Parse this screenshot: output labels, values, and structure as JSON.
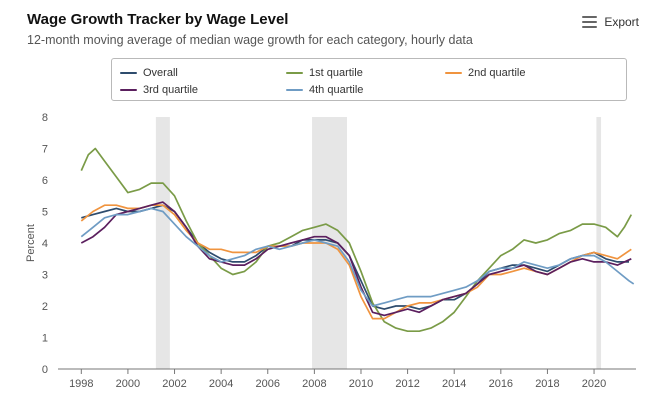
{
  "header": {
    "title": "Wage Growth Tracker by Wage Level",
    "subtitle": "12-month moving average of median wage growth for each category, hourly data",
    "export_label": "Export",
    "export_icon": "hamburger-menu-icon"
  },
  "chart_data": {
    "type": "line",
    "ylabel": "Percent",
    "ylim": [
      0,
      8
    ],
    "yticks": [
      "0",
      "1",
      "2",
      "3",
      "4",
      "5",
      "6",
      "7",
      "8"
    ],
    "xlim": [
      1997.0,
      2021.8
    ],
    "xticks": [
      "1998",
      "2000",
      "2002",
      "2004",
      "2006",
      "2008",
      "2010",
      "2012",
      "2014",
      "2016",
      "2018",
      "2020"
    ],
    "grid": "none",
    "legend_position": "top",
    "recession_shading": [
      {
        "start": 2001.2,
        "end": 2001.8
      },
      {
        "start": 2007.9,
        "end": 2009.4
      },
      {
        "start": 2020.1,
        "end": 2020.3
      }
    ],
    "series": [
      {
        "name": "Overall",
        "color": "#2e4c6d",
        "points": [
          [
            1998,
            4.8
          ],
          [
            1998.5,
            4.9
          ],
          [
            1999,
            5.0
          ],
          [
            1999.5,
            5.1
          ],
          [
            2000,
            5.0
          ],
          [
            2000.5,
            5.0
          ],
          [
            2001,
            5.1
          ],
          [
            2001.5,
            5.2
          ],
          [
            2002,
            5.0
          ],
          [
            2002.5,
            4.5
          ],
          [
            2003,
            4.0
          ],
          [
            2003.5,
            3.7
          ],
          [
            2004,
            3.5
          ],
          [
            2004.5,
            3.4
          ],
          [
            2005,
            3.4
          ],
          [
            2005.5,
            3.6
          ],
          [
            2006,
            3.9
          ],
          [
            2006.5,
            3.9
          ],
          [
            2007,
            3.9
          ],
          [
            2007.5,
            4.1
          ],
          [
            2008,
            4.1
          ],
          [
            2008.5,
            4.1
          ],
          [
            2009,
            4.0
          ],
          [
            2009.5,
            3.6
          ],
          [
            2010,
            2.8
          ],
          [
            2010.5,
            2.0
          ],
          [
            2011,
            1.9
          ],
          [
            2011.5,
            2.0
          ],
          [
            2012,
            2.0
          ],
          [
            2012.5,
            1.9
          ],
          [
            2013,
            2.0
          ],
          [
            2013.5,
            2.2
          ],
          [
            2014,
            2.2
          ],
          [
            2014.5,
            2.4
          ],
          [
            2015,
            2.7
          ],
          [
            2015.5,
            3.1
          ],
          [
            2016,
            3.2
          ],
          [
            2016.5,
            3.3
          ],
          [
            2017,
            3.3
          ],
          [
            2017.5,
            3.2
          ],
          [
            2018,
            3.1
          ],
          [
            2018.5,
            3.3
          ],
          [
            2019,
            3.5
          ],
          [
            2019.5,
            3.6
          ],
          [
            2020,
            3.7
          ],
          [
            2020.5,
            3.5
          ],
          [
            2021,
            3.4
          ],
          [
            2021.5,
            3.4
          ]
        ]
      },
      {
        "name": "1st quartile",
        "color": "#7a9b47",
        "points": [
          [
            1998,
            6.3
          ],
          [
            1998.3,
            6.8
          ],
          [
            1998.6,
            7.0
          ],
          [
            1999,
            6.6
          ],
          [
            1999.5,
            6.1
          ],
          [
            2000,
            5.6
          ],
          [
            2000.5,
            5.7
          ],
          [
            2001,
            5.9
          ],
          [
            2001.5,
            5.9
          ],
          [
            2002,
            5.5
          ],
          [
            2002.5,
            4.7
          ],
          [
            2003,
            4.0
          ],
          [
            2003.5,
            3.6
          ],
          [
            2004,
            3.2
          ],
          [
            2004.5,
            3.0
          ],
          [
            2005,
            3.1
          ],
          [
            2005.5,
            3.4
          ],
          [
            2006,
            3.9
          ],
          [
            2006.5,
            4.0
          ],
          [
            2007,
            4.2
          ],
          [
            2007.5,
            4.4
          ],
          [
            2008,
            4.5
          ],
          [
            2008.5,
            4.6
          ],
          [
            2009,
            4.4
          ],
          [
            2009.5,
            4.0
          ],
          [
            2010,
            3.1
          ],
          [
            2010.5,
            2.1
          ],
          [
            2011,
            1.5
          ],
          [
            2011.5,
            1.3
          ],
          [
            2012,
            1.2
          ],
          [
            2012.5,
            1.2
          ],
          [
            2013,
            1.3
          ],
          [
            2013.5,
            1.5
          ],
          [
            2014,
            1.8
          ],
          [
            2014.5,
            2.3
          ],
          [
            2015,
            2.8
          ],
          [
            2015.5,
            3.2
          ],
          [
            2016,
            3.6
          ],
          [
            2016.5,
            3.8
          ],
          [
            2017,
            4.1
          ],
          [
            2017.5,
            4.0
          ],
          [
            2018,
            4.1
          ],
          [
            2018.5,
            4.3
          ],
          [
            2019,
            4.4
          ],
          [
            2019.5,
            4.6
          ],
          [
            2020,
            4.6
          ],
          [
            2020.5,
            4.5
          ],
          [
            2021,
            4.2
          ],
          [
            2021.3,
            4.5
          ],
          [
            2021.6,
            4.9
          ]
        ]
      },
      {
        "name": "2nd quartile",
        "color": "#f0943f",
        "points": [
          [
            1998,
            4.7
          ],
          [
            1998.5,
            5.0
          ],
          [
            1999,
            5.2
          ],
          [
            1999.5,
            5.2
          ],
          [
            2000,
            5.1
          ],
          [
            2000.5,
            5.1
          ],
          [
            2001,
            5.2
          ],
          [
            2001.5,
            5.2
          ],
          [
            2002,
            4.9
          ],
          [
            2002.5,
            4.4
          ],
          [
            2003,
            4.0
          ],
          [
            2003.5,
            3.8
          ],
          [
            2004,
            3.8
          ],
          [
            2004.5,
            3.7
          ],
          [
            2005,
            3.7
          ],
          [
            2005.5,
            3.7
          ],
          [
            2006,
            3.9
          ],
          [
            2006.5,
            3.9
          ],
          [
            2007,
            3.9
          ],
          [
            2007.5,
            4.0
          ],
          [
            2008,
            4.0
          ],
          [
            2008.5,
            4.0
          ],
          [
            2009,
            3.8
          ],
          [
            2009.5,
            3.3
          ],
          [
            2010,
            2.3
          ],
          [
            2010.5,
            1.6
          ],
          [
            2011,
            1.6
          ],
          [
            2011.5,
            1.8
          ],
          [
            2012,
            2.0
          ],
          [
            2012.5,
            2.1
          ],
          [
            2013,
            2.1
          ],
          [
            2013.5,
            2.2
          ],
          [
            2014,
            2.3
          ],
          [
            2014.5,
            2.4
          ],
          [
            2015,
            2.6
          ],
          [
            2015.5,
            3.0
          ],
          [
            2016,
            3.0
          ],
          [
            2016.5,
            3.1
          ],
          [
            2017,
            3.2
          ],
          [
            2017.5,
            3.1
          ],
          [
            2018,
            3.0
          ],
          [
            2018.5,
            3.2
          ],
          [
            2019,
            3.4
          ],
          [
            2019.5,
            3.6
          ],
          [
            2020,
            3.7
          ],
          [
            2020.5,
            3.6
          ],
          [
            2021,
            3.5
          ],
          [
            2021.6,
            3.8
          ]
        ]
      },
      {
        "name": "3rd quartile",
        "color": "#5b1f5e",
        "points": [
          [
            1998,
            4.0
          ],
          [
            1998.5,
            4.2
          ],
          [
            1999,
            4.5
          ],
          [
            1999.5,
            4.9
          ],
          [
            2000,
            5.0
          ],
          [
            2000.5,
            5.1
          ],
          [
            2001,
            5.2
          ],
          [
            2001.5,
            5.3
          ],
          [
            2002,
            5.0
          ],
          [
            2002.5,
            4.5
          ],
          [
            2003,
            3.9
          ],
          [
            2003.5,
            3.5
          ],
          [
            2004,
            3.4
          ],
          [
            2004.5,
            3.3
          ],
          [
            2005,
            3.3
          ],
          [
            2005.5,
            3.5
          ],
          [
            2006,
            3.8
          ],
          [
            2006.5,
            3.9
          ],
          [
            2007,
            4.0
          ],
          [
            2007.5,
            4.1
          ],
          [
            2008,
            4.2
          ],
          [
            2008.5,
            4.2
          ],
          [
            2009,
            4.0
          ],
          [
            2009.5,
            3.6
          ],
          [
            2010,
            2.6
          ],
          [
            2010.5,
            1.8
          ],
          [
            2011,
            1.7
          ],
          [
            2011.5,
            1.8
          ],
          [
            2012,
            1.9
          ],
          [
            2012.5,
            1.8
          ],
          [
            2013,
            2.0
          ],
          [
            2013.5,
            2.2
          ],
          [
            2014,
            2.3
          ],
          [
            2014.5,
            2.4
          ],
          [
            2015,
            2.7
          ],
          [
            2015.5,
            3.0
          ],
          [
            2016,
            3.1
          ],
          [
            2016.5,
            3.2
          ],
          [
            2017,
            3.3
          ],
          [
            2017.5,
            3.1
          ],
          [
            2018,
            3.0
          ],
          [
            2018.5,
            3.2
          ],
          [
            2019,
            3.4
          ],
          [
            2019.5,
            3.5
          ],
          [
            2020,
            3.4
          ],
          [
            2020.5,
            3.4
          ],
          [
            2021,
            3.3
          ],
          [
            2021.6,
            3.5
          ]
        ]
      },
      {
        "name": "4th quartile",
        "color": "#6f9cc4",
        "points": [
          [
            1998,
            4.2
          ],
          [
            1998.5,
            4.5
          ],
          [
            1999,
            4.8
          ],
          [
            1999.5,
            4.9
          ],
          [
            2000,
            4.9
          ],
          [
            2000.5,
            5.0
          ],
          [
            2001,
            5.1
          ],
          [
            2001.5,
            5.0
          ],
          [
            2002,
            4.6
          ],
          [
            2002.5,
            4.2
          ],
          [
            2003,
            3.9
          ],
          [
            2003.5,
            3.6
          ],
          [
            2004,
            3.4
          ],
          [
            2004.5,
            3.5
          ],
          [
            2005,
            3.6
          ],
          [
            2005.5,
            3.8
          ],
          [
            2006,
            3.9
          ],
          [
            2006.5,
            3.8
          ],
          [
            2007,
            3.9
          ],
          [
            2007.5,
            4.0
          ],
          [
            2008,
            4.1
          ],
          [
            2008.5,
            4.0
          ],
          [
            2009,
            3.9
          ],
          [
            2009.5,
            3.4
          ],
          [
            2010,
            2.5
          ],
          [
            2010.5,
            2.0
          ],
          [
            2011,
            2.1
          ],
          [
            2011.5,
            2.2
          ],
          [
            2012,
            2.3
          ],
          [
            2012.5,
            2.3
          ],
          [
            2013,
            2.3
          ],
          [
            2013.5,
            2.4
          ],
          [
            2014,
            2.5
          ],
          [
            2014.5,
            2.6
          ],
          [
            2015,
            2.8
          ],
          [
            2015.5,
            3.1
          ],
          [
            2016,
            3.2
          ],
          [
            2016.5,
            3.2
          ],
          [
            2017,
            3.4
          ],
          [
            2017.5,
            3.3
          ],
          [
            2018,
            3.2
          ],
          [
            2018.5,
            3.3
          ],
          [
            2019,
            3.5
          ],
          [
            2019.5,
            3.6
          ],
          [
            2020,
            3.6
          ],
          [
            2020.5,
            3.4
          ],
          [
            2021,
            3.1
          ],
          [
            2021.5,
            2.8
          ],
          [
            2021.7,
            2.7
          ]
        ]
      }
    ]
  }
}
